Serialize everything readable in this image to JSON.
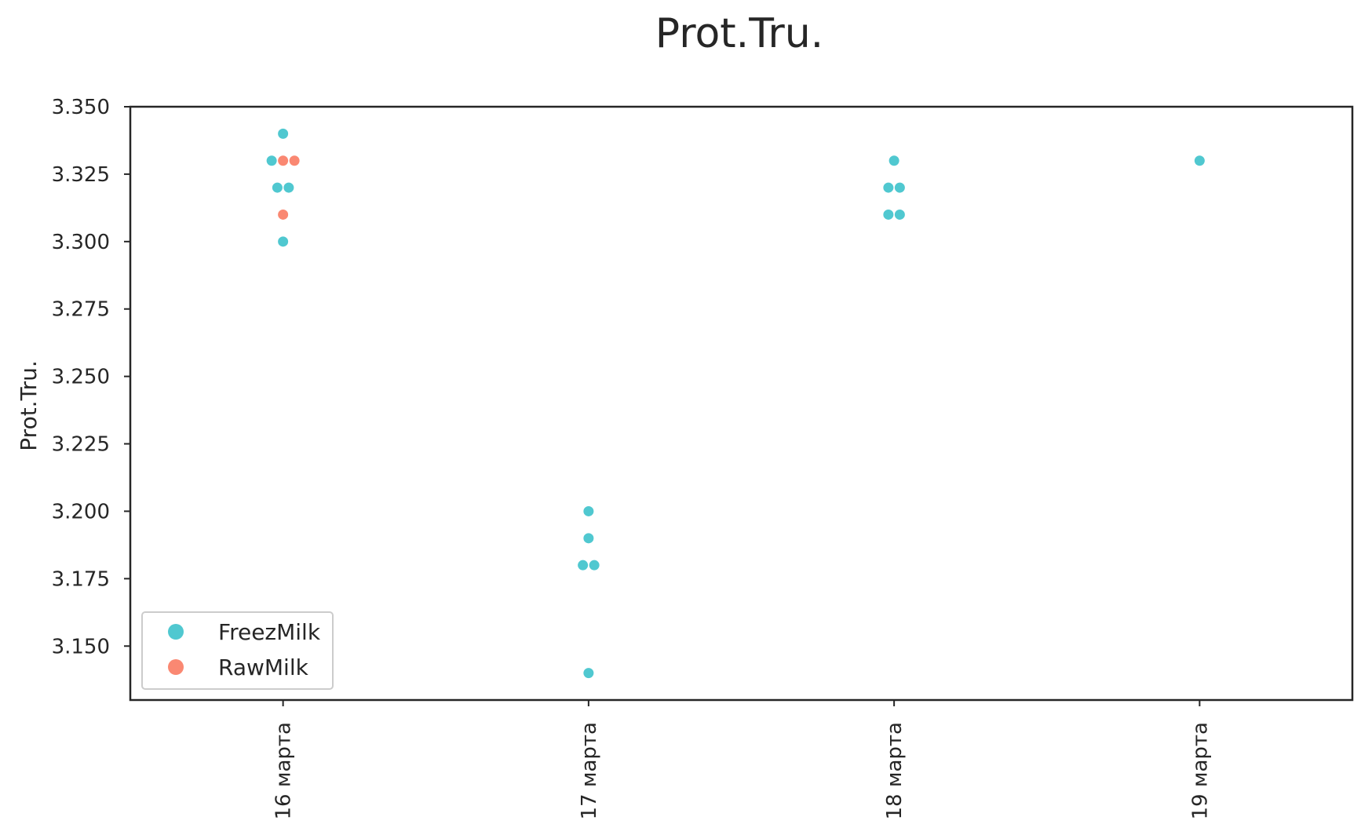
{
  "chart_data": {
    "type": "scatter",
    "subtype": "swarm",
    "title": "Prot.Tru.",
    "xlabel": "",
    "ylabel": "Prot.Tru.",
    "categories": [
      "16 марта",
      "17 марта",
      "18 марта",
      "19 марта"
    ],
    "ylim": [
      3.13,
      3.35
    ],
    "yticks": [
      "3.150",
      "3.175",
      "3.200",
      "3.225",
      "3.250",
      "3.275",
      "3.300",
      "3.325",
      "3.350"
    ],
    "grid": false,
    "legend_position": "lower-left",
    "series": [
      {
        "name": "FreezMilk",
        "color": "#50c8d0",
        "points": [
          {
            "category": "16 марта",
            "y": 3.34
          },
          {
            "category": "16 марта",
            "y": 3.33
          },
          {
            "category": "16 марта",
            "y": 3.32
          },
          {
            "category": "16 марта",
            "y": 3.32
          },
          {
            "category": "16 марта",
            "y": 3.3
          },
          {
            "category": "17 марта",
            "y": 3.2
          },
          {
            "category": "17 марта",
            "y": 3.19
          },
          {
            "category": "17 марта",
            "y": 3.18
          },
          {
            "category": "17 марта",
            "y": 3.18
          },
          {
            "category": "17 марта",
            "y": 3.14
          },
          {
            "category": "18 марта",
            "y": 3.33
          },
          {
            "category": "18 марта",
            "y": 3.32
          },
          {
            "category": "18 марта",
            "y": 3.32
          },
          {
            "category": "18 марта",
            "y": 3.31
          },
          {
            "category": "18 марта",
            "y": 3.31
          },
          {
            "category": "19 марта",
            "y": 3.33
          }
        ]
      },
      {
        "name": "RawMilk",
        "color": "#fa8872",
        "points": [
          {
            "category": "16 марта",
            "y": 3.33
          },
          {
            "category": "16 марта",
            "y": 3.33
          },
          {
            "category": "16 марта",
            "y": 3.31
          }
        ]
      }
    ]
  }
}
